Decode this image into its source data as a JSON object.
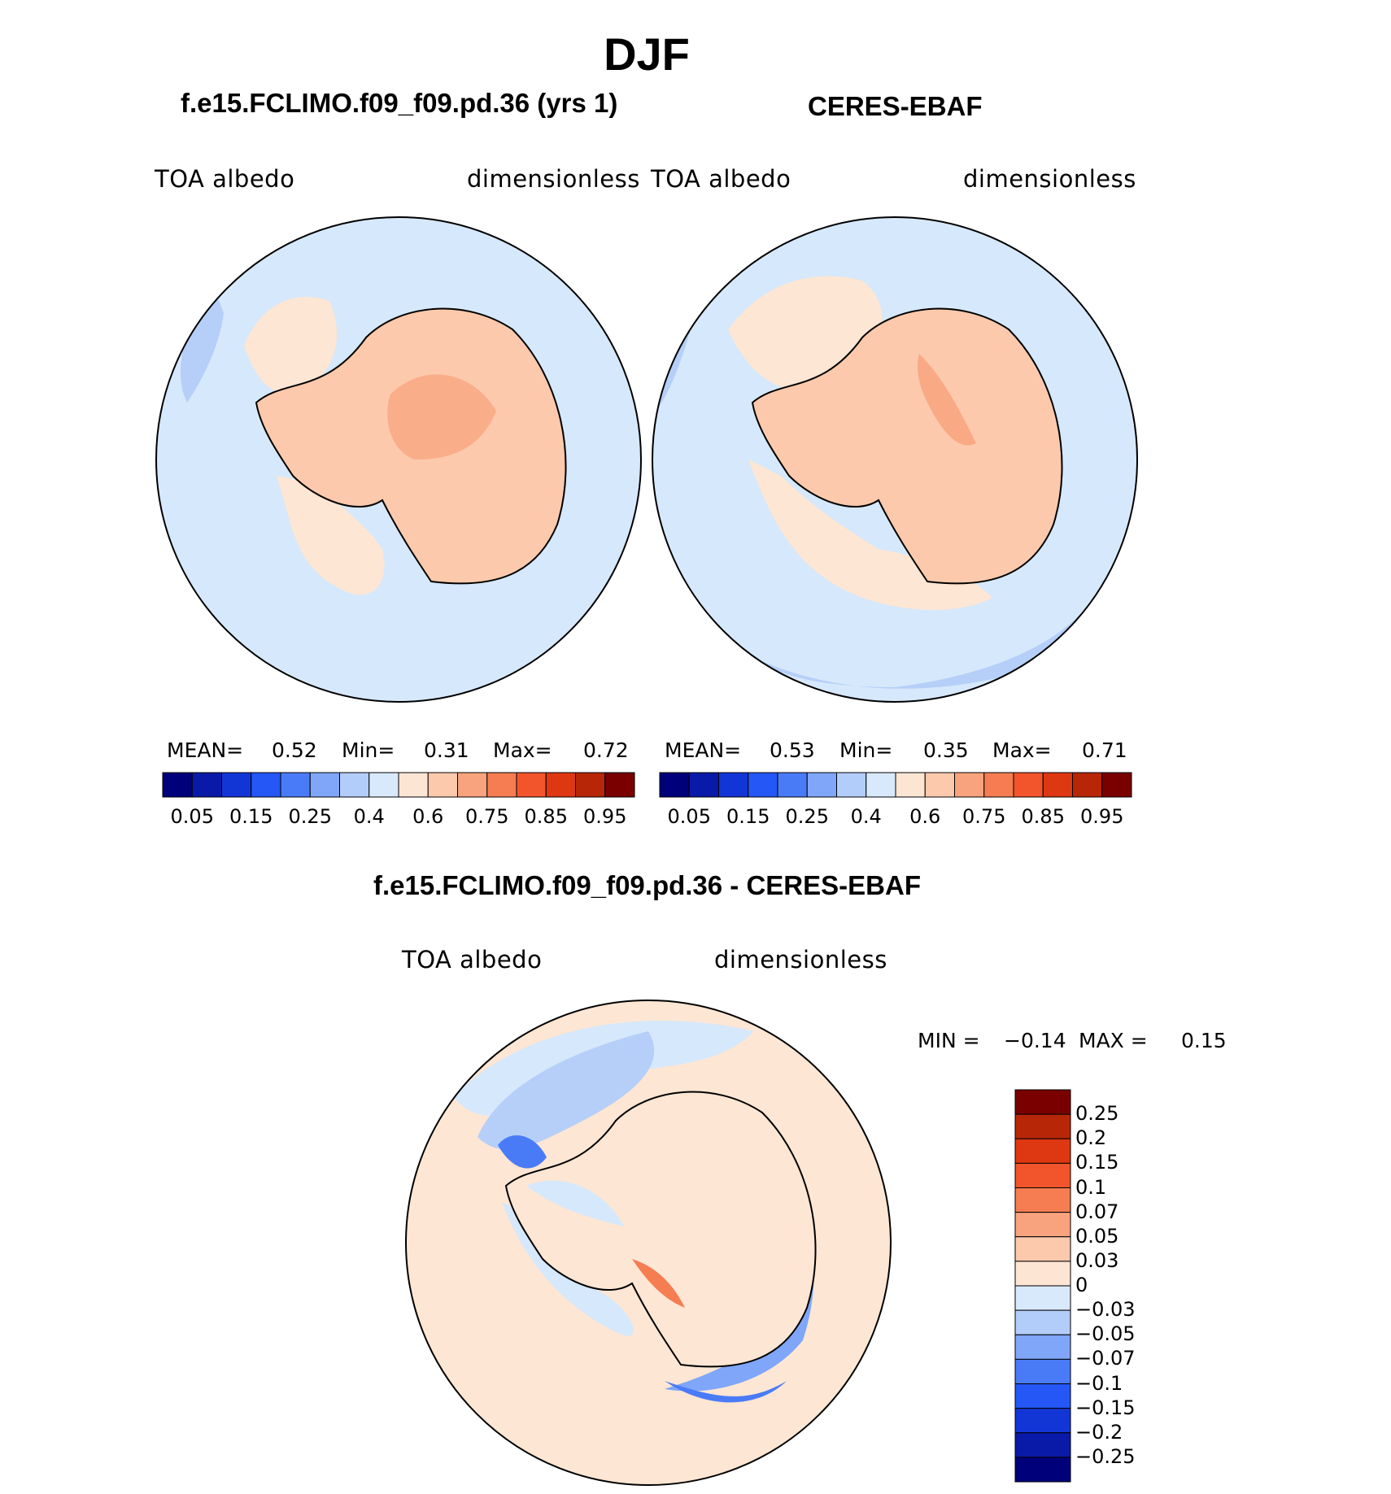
{
  "figure": {
    "season": "DJF"
  },
  "panels": [
    {
      "title": "f.e15.FCLIMO.f09_f09.pd.36 (yrs 1)",
      "variable": "TOA  albedo",
      "units": "dimensionless",
      "stats": {
        "mean_label": "MEAN=",
        "mean": "0.52",
        "min_label": "Min=",
        "min": "0.31",
        "max_label": "Max=",
        "max": "0.72"
      }
    },
    {
      "title": "CERES-EBAF",
      "variable": "TOA  albedo",
      "units": "dimensionless",
      "stats": {
        "mean_label": "MEAN=",
        "mean": "0.53",
        "min_label": "Min=",
        "min": "0.35",
        "max_label": "Max=",
        "max": "0.71"
      }
    }
  ],
  "shared_colorbar": {
    "labels": [
      "0.05",
      "0.15",
      "0.25",
      "0.4",
      "0.6",
      "0.75",
      "0.85",
      "0.95"
    ],
    "colors": [
      "#00007a",
      "#0a1aa8",
      "#1236d6",
      "#2457f5",
      "#4a7bf7",
      "#7fa6f9",
      "#b3cdfb",
      "#d9e9fc",
      "#fde5d3",
      "#fcc9ac",
      "#f9a37e",
      "#f57d51",
      "#f2552b",
      "#de3812",
      "#b82608",
      "#7a0000"
    ]
  },
  "difference": {
    "title": "f.e15.FCLIMO.f09_f09.pd.36 - CERES-EBAF",
    "variable": "TOA  albedo",
    "units": "dimensionless",
    "min_label": "MIN =",
    "min": "−0.14",
    "max_label": "MAX =",
    "max": "0.15",
    "colorbar_labels": [
      "0.25",
      "0.2",
      "0.15",
      "0.1",
      "0.07",
      "0.05",
      "0.03",
      "0",
      "−0.03",
      "−0.05",
      "−0.07",
      "−0.1",
      "−0.15",
      "−0.2",
      "−0.25"
    ],
    "colorbar_colors": [
      "#7a0000",
      "#b82608",
      "#de3812",
      "#f2552b",
      "#f57d51",
      "#f9a37e",
      "#fcc9ac",
      "#fde5d3",
      "#d9e9fc",
      "#b3cdfb",
      "#7fa6f9",
      "#4a7bf7",
      "#2457f5",
      "#1236d6",
      "#0a1aa8",
      "#00007a"
    ]
  },
  "colors": {
    "ocean_light_blue": "#d6e8fb",
    "ocean_blue": "#b5cff8",
    "peach_light": "#fde6d3",
    "peach": "#fcc9ac",
    "salmon": "#f9a37e",
    "red": "#f2552b",
    "blue_mid": "#7fa6f9",
    "blue_dark": "#4a7bf7"
  }
}
